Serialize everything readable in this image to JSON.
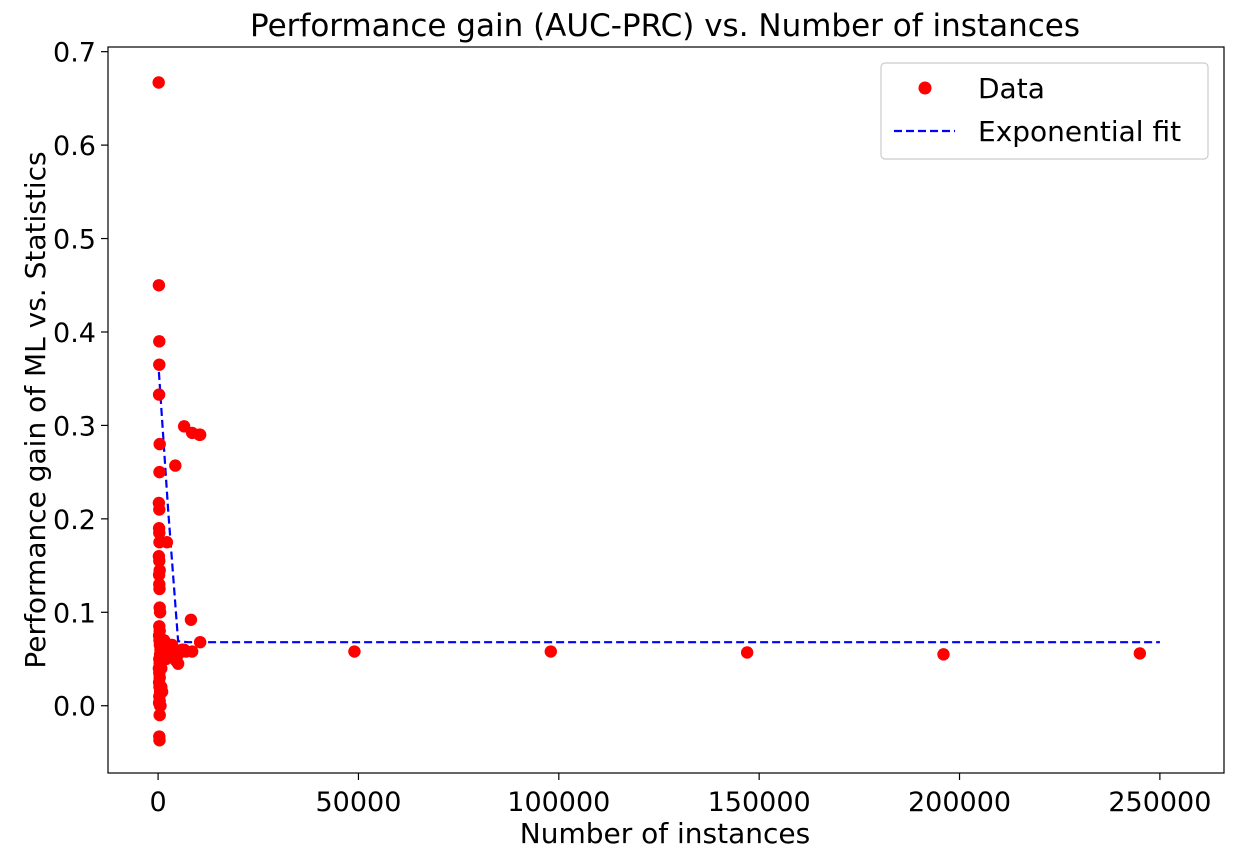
{
  "chart_data": {
    "type": "scatter",
    "title": "Performance gain (AUC-PRC) vs. Number of instances",
    "xlabel": "Number of instances",
    "ylabel": "Performance gain of ML vs. Statistics",
    "xlim": [
      -12500,
      266000
    ],
    "ylim": [
      -0.072,
      0.705
    ],
    "xticks": [
      0,
      50000,
      100000,
      150000,
      200000,
      250000
    ],
    "yticks": [
      0.0,
      0.1,
      0.2,
      0.3,
      0.4,
      0.5,
      0.6,
      0.7
    ],
    "ytick_labels": [
      "0.0",
      "0.1",
      "0.2",
      "0.3",
      "0.4",
      "0.5",
      "0.6",
      "0.7"
    ],
    "grid": false,
    "legend": {
      "placement": "top-right",
      "entries": [
        {
          "label": "Data",
          "style": "marker",
          "color": "#ff0000"
        },
        {
          "label": "Exponential fit",
          "style": "dashed-line",
          "color": "#0000ff"
        }
      ]
    },
    "series": [
      {
        "name": "Data",
        "kind": "points",
        "color": "#ff0000",
        "x": [
          150,
          200,
          300,
          300,
          250,
          400,
          350,
          200,
          300,
          250,
          300,
          350,
          200,
          300,
          400,
          250,
          300,
          350,
          400,
          500,
          300,
          400,
          250,
          350,
          450,
          600,
          700,
          500,
          300,
          400,
          200,
          300,
          400,
          250,
          350,
          500,
          300,
          400,
          600,
          500,
          400,
          300,
          350,
          250,
          500,
          700,
          600,
          800,
          1000,
          1200,
          1500,
          2000,
          2500,
          3000,
          3500,
          4000,
          4500,
          5000,
          6000,
          7000,
          1500,
          2000,
          2500,
          3000,
          4000,
          4500,
          5000,
          6500,
          8500,
          10500,
          4300,
          2200,
          8200,
          10300,
          600,
          800,
          49000,
          98000,
          147000,
          196000,
          245000
        ],
        "y": [
          0.667,
          0.45,
          0.39,
          0.365,
          0.333,
          0.28,
          0.25,
          0.217,
          0.21,
          0.19,
          0.185,
          0.175,
          0.16,
          0.155,
          0.145,
          0.14,
          0.13,
          0.125,
          0.105,
          0.1,
          0.085,
          0.08,
          0.075,
          0.07,
          0.065,
          0.06,
          0.06,
          0.055,
          0.05,
          0.045,
          0.04,
          0.035,
          0.03,
          0.025,
          0.02,
          0.015,
          0.01,
          0.005,
          0.0,
          0.0,
          -0.01,
          -0.033,
          -0.037,
          0.003,
          0.05,
          0.055,
          0.045,
          0.04,
          0.015,
          0.05,
          0.06,
          0.05,
          0.055,
          0.06,
          0.065,
          0.06,
          0.05,
          0.055,
          0.06,
          0.058,
          0.07,
          0.06,
          0.065,
          0.065,
          0.055,
          0.048,
          0.045,
          0.06,
          0.058,
          0.068,
          0.257,
          0.175,
          0.092,
          0.29,
          0.04,
          0.02,
          0.058,
          0.058,
          0.057,
          0.055,
          0.056
        ]
      },
      {
        "name": "Exponential fit",
        "kind": "line",
        "dash": "dashed",
        "color": "#0000ff",
        "x": [
          0,
          2500,
          5000,
          7500,
          10000,
          50000,
          100000,
          150000,
          200000,
          250000
        ],
        "y": [
          0.37,
          0.21,
          0.069,
          0.068,
          0.068,
          0.068,
          0.068,
          0.068,
          0.068,
          0.068
        ]
      }
    ],
    "extra_points": {
      "x": [
        6500,
        8500,
        10500
      ],
      "y": [
        0.299,
        0.292,
        0.29
      ]
    }
  }
}
